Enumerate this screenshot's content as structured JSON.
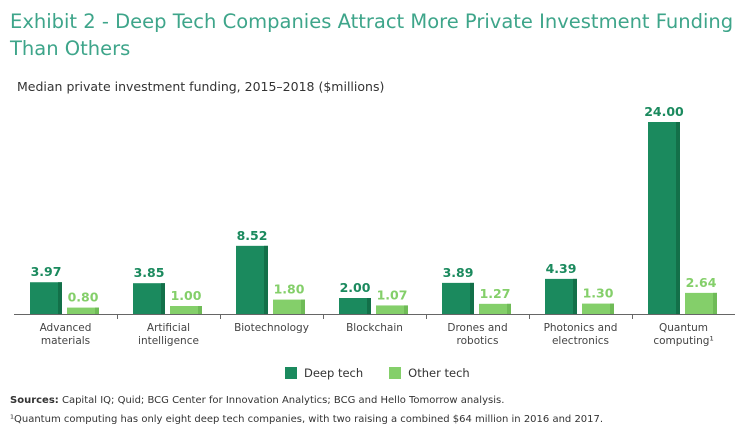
{
  "title": "Exhibit 2 - Deep Tech Companies Attract More Private Investment Funding Than Others",
  "subtitle": "Median private investment funding, 2015–2018 ($millions)",
  "colors": {
    "deep_tech": "#1b8a5e",
    "deep_tech_shade": "#137049",
    "other_tech": "#84cf6a",
    "other_tech_shade": "#6fbb57",
    "title": "#3ea58a",
    "axis": "#666666"
  },
  "chart_data": {
    "type": "bar",
    "title": "Median private investment funding, 2015–2018 ($millions)",
    "xlabel": "",
    "ylabel": "",
    "ylim": [
      0,
      24
    ],
    "grid": false,
    "legend": "bottom-center",
    "categories": [
      [
        "Advanced",
        "materials"
      ],
      [
        "Artificial",
        "intelligence"
      ],
      [
        "Biotechnology"
      ],
      [
        "Blockchain"
      ],
      [
        "Drones and",
        "robotics"
      ],
      [
        "Photonics and",
        "electronics"
      ],
      [
        "Quantum",
        "computing¹"
      ]
    ],
    "series": [
      {
        "name": "Deep tech",
        "values": [
          3.97,
          3.85,
          8.52,
          2.0,
          3.89,
          4.39,
          24.0
        ]
      },
      {
        "name": "Other tech",
        "values": [
          0.8,
          1.0,
          1.8,
          1.07,
          1.27,
          1.3,
          2.64
        ]
      }
    ],
    "value_labels": [
      [
        "3.97",
        "3.85",
        "8.52",
        "2.00",
        "3.89",
        "4.39",
        "24.00"
      ],
      [
        "0.80",
        "1.00",
        "1.80",
        "1.07",
        "1.27",
        "1.30",
        "2.64"
      ]
    ]
  },
  "legend": {
    "deep_tech_label": "Deep tech",
    "other_tech_label": "Other tech"
  },
  "sources": {
    "label": "Sources:",
    "text": " Capital IQ; Quid; BCG Center for Innovation Analytics; BCG and Hello Tomorrow analysis."
  },
  "footnote": "¹Quantum computing has only eight deep tech companies, with two raising a combined $64 million in 2016 and 2017."
}
